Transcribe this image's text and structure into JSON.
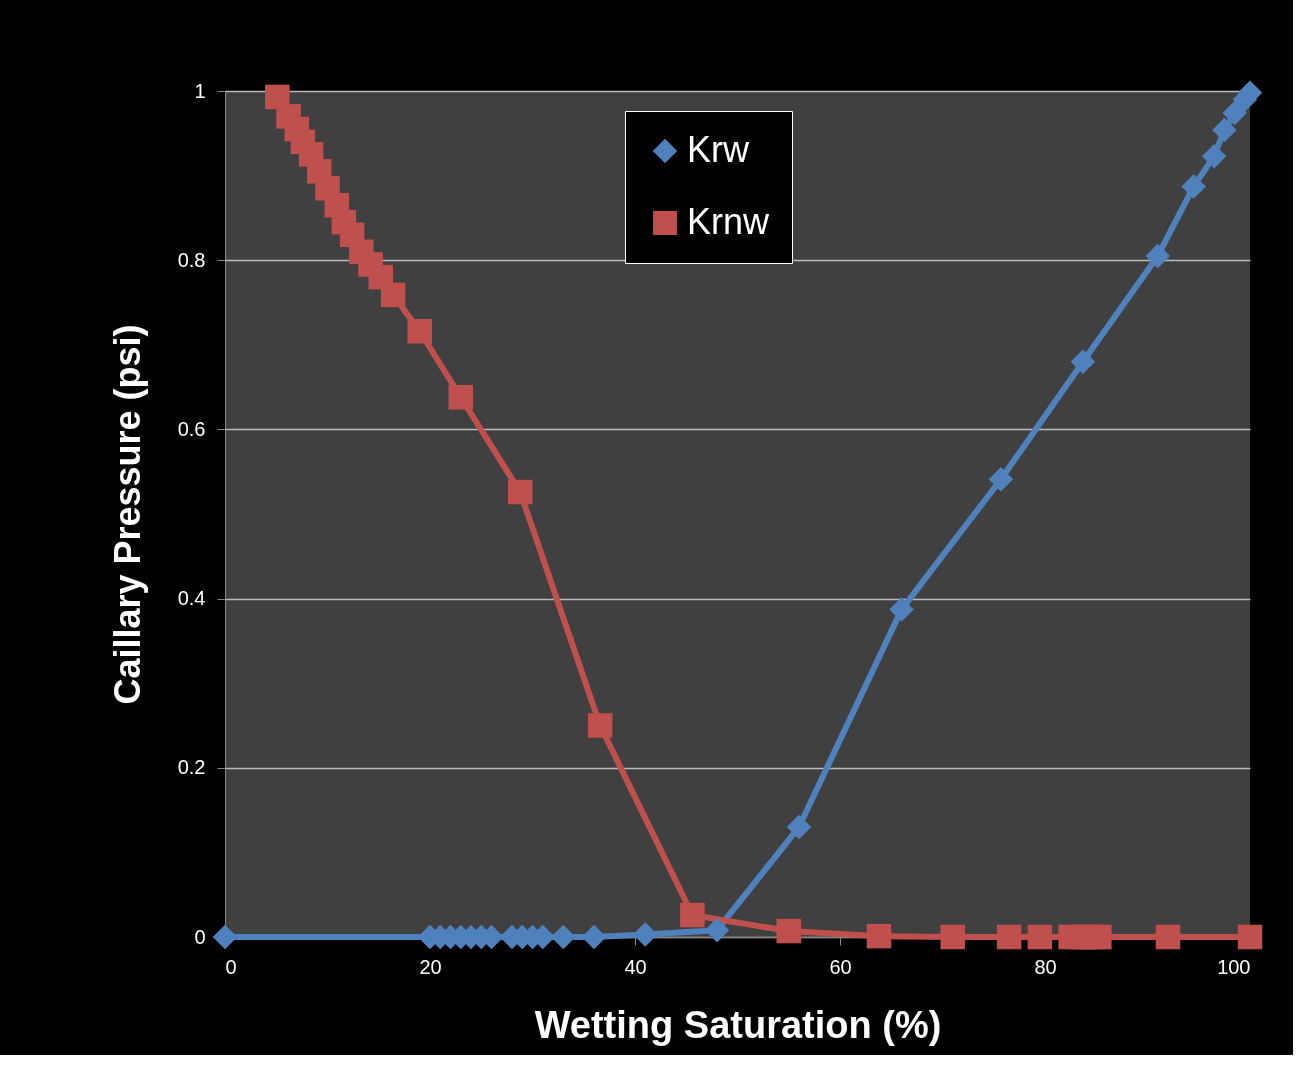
{
  "chart_data": {
    "type": "line",
    "xlabel": "Wetting Saturation (%)",
    "ylabel": "Caillary Pressure (psi)",
    "xlim": [
      0,
      100
    ],
    "xticks": [
      0,
      20,
      40,
      60,
      80,
      100
    ],
    "ylim": [
      0,
      1
    ],
    "yticks": [
      0,
      0.2,
      0.4,
      0.6,
      0.8,
      1
    ],
    "grid": "y",
    "legend": "top",
    "line_style": "solid",
    "series": [
      {
        "name": "Krw",
        "color": "#4f81bd",
        "marker": "diamond",
        "x": [
          0,
          20,
          21,
          22,
          23,
          24,
          25,
          26,
          28,
          29,
          30,
          31,
          33,
          36,
          41,
          48,
          56,
          66,
          75.7,
          83.7,
          91,
          94.5,
          96.5,
          97.5,
          98.5,
          99.5,
          100
        ],
        "values": [
          0,
          0,
          0,
          0,
          0,
          0,
          0,
          0,
          0,
          0,
          0,
          0,
          0,
          0,
          0.003,
          0.008,
          0.13,
          0.387,
          0.541,
          0.68,
          0.805,
          0.887,
          0.923,
          0.954,
          0.974,
          0.99,
          0.998
        ]
      },
      {
        "name": "Krnw",
        "color": "#c0504d",
        "marker": "square",
        "x": [
          5.1,
          6.2,
          7,
          7.6,
          8.4,
          9.2,
          10,
          10.9,
          11.6,
          12.4,
          13.3,
          14.2,
          15.2,
          16.4,
          19,
          23,
          28.8,
          36.6,
          45.6,
          55,
          63.8,
          71,
          76.5,
          79.5,
          82.5,
          83.2,
          83.8,
          84.3,
          84.8,
          85.3,
          92,
          100
        ],
        "values": [
          0.993,
          0.97,
          0.955,
          0.94,
          0.925,
          0.905,
          0.885,
          0.865,
          0.845,
          0.83,
          0.81,
          0.795,
          0.78,
          0.759,
          0.716,
          0.638,
          0.526,
          0.25,
          0.026,
          0.007,
          0.001,
          0,
          0,
          0,
          0,
          0,
          0,
          0,
          0,
          0,
          0,
          0
        ]
      }
    ]
  }
}
